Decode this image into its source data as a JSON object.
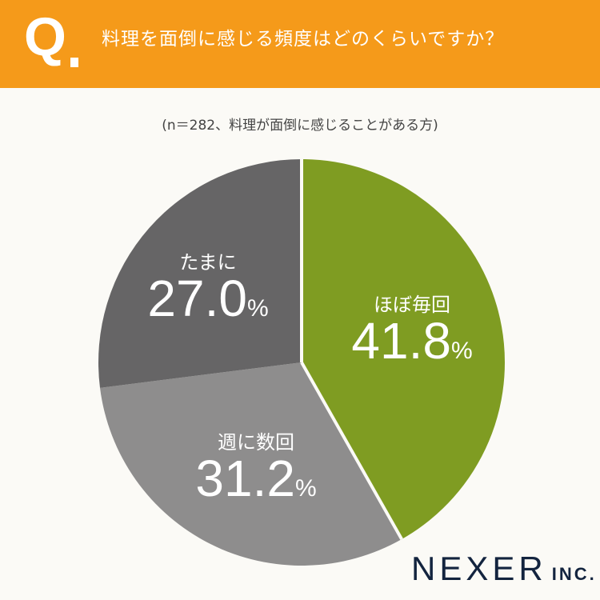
{
  "header": {
    "q_mark": "Q",
    "title": "料理を面倒に感じる頻度はどのくらいですか？"
  },
  "subtitle": "(n＝282、料理が面倒に感じることがある方)",
  "logo": {
    "name": "NEXER",
    "suffix": "INC."
  },
  "colors": {
    "header": "#f59a1a",
    "background": "#fbfaf6",
    "slice1": "#7f9c22",
    "slice2": "#8e8d8d",
    "slice3": "#666566",
    "logo": "#13243f"
  },
  "chart_data": {
    "type": "pie",
    "title": "料理を面倒に感じる頻度はどのくらいですか？",
    "subtitle": "(n＝282、料理が面倒に感じることがある方)",
    "categories": [
      "ほぼ毎回",
      "週に数回",
      "たまに"
    ],
    "values": [
      41.8,
      31.2,
      27.0
    ],
    "unit": "%",
    "colors": [
      "#7f9c22",
      "#8e8d8d",
      "#666566"
    ],
    "start_angle": "12 o'clock",
    "direction": "clockwise",
    "n": 282
  },
  "labels": [
    {
      "cat": "ほぼ毎回",
      "val": "41.8",
      "pct": "%"
    },
    {
      "cat": "週に数回",
      "val": "31.2",
      "pct": "%"
    },
    {
      "cat": "たまに",
      "val": "27.0",
      "pct": "%"
    }
  ]
}
